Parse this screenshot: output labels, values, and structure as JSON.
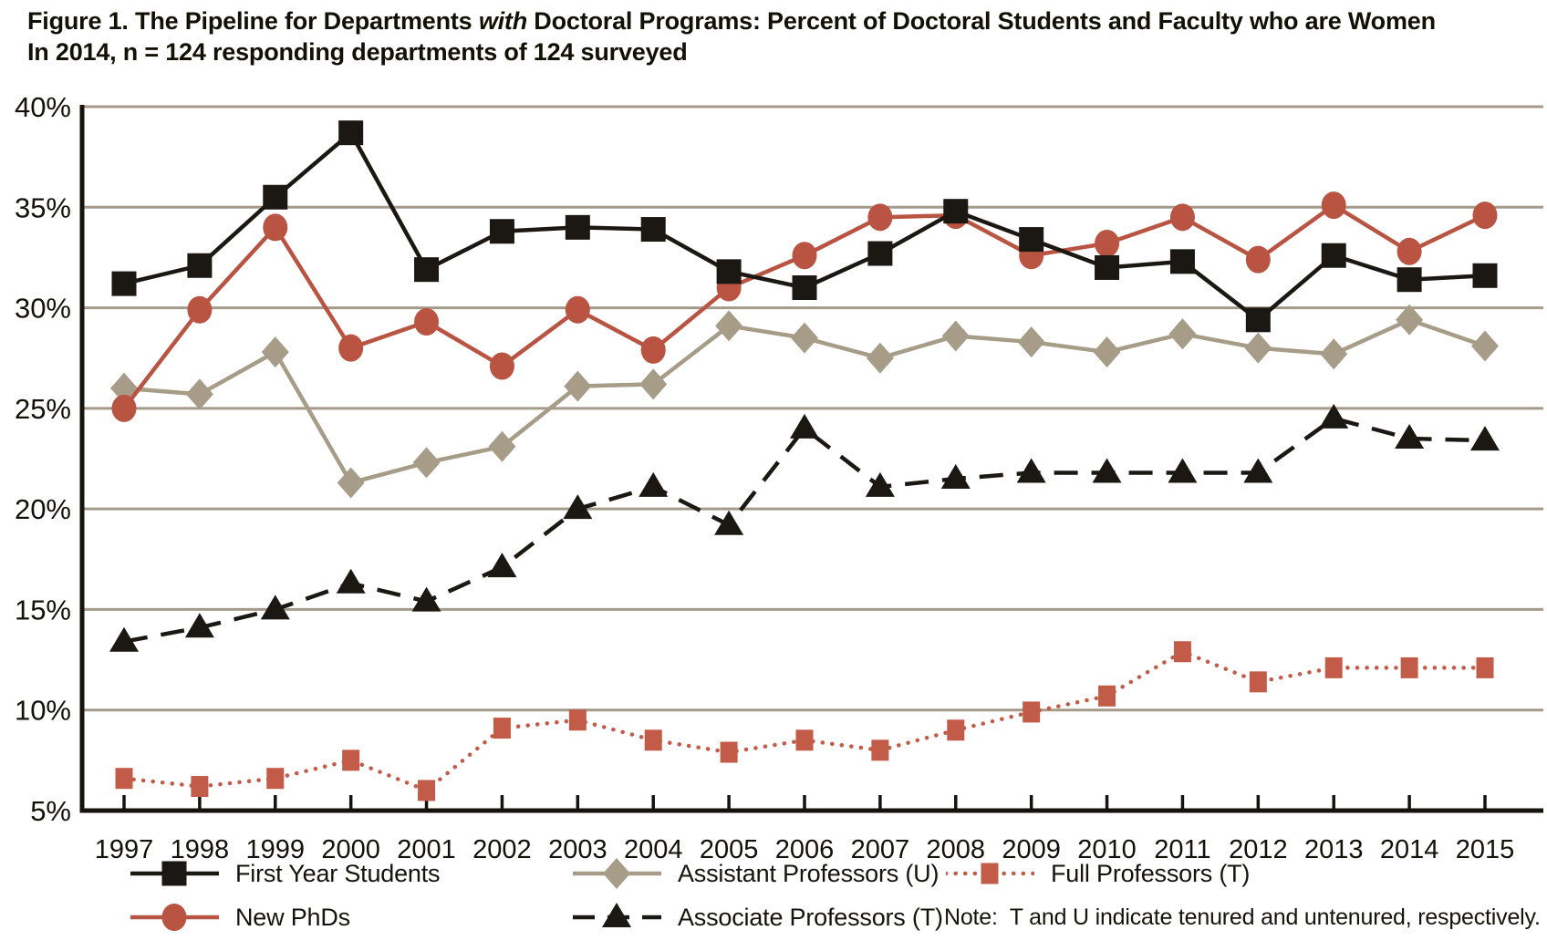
{
  "figure_title": {
    "prefix": "Figure 1. The Pipeline for Departments ",
    "emphasis": "with",
    "suffix": " Doctoral Programs: Percent of Doctoral Students and Faculty who are Women"
  },
  "subtitle": "In 2014, n = 124 responding departments of 124 surveyed",
  "note": "Note:  T and U indicate tenured and untenured, respectively.",
  "colors": {
    "black": "#1b1713",
    "red": "#b95342",
    "red_dotted": "#c25b48",
    "gray": "#a69c87",
    "grid": "#a39a8a",
    "axis": "#16130e"
  },
  "chart_data": {
    "type": "line",
    "x": [
      1997,
      1998,
      1999,
      2000,
      2001,
      2002,
      2003,
      2004,
      2005,
      2006,
      2007,
      2008,
      2009,
      2010,
      2011,
      2012,
      2013,
      2014,
      2015
    ],
    "ylim": [
      5,
      40
    ],
    "yticks": [
      5,
      10,
      15,
      20,
      25,
      30,
      35,
      40
    ],
    "y_tick_labels": [
      "5%",
      "10%",
      "15%",
      "20%",
      "25%",
      "30%",
      "35%",
      "40%"
    ],
    "grid": true,
    "legend_position": "bottom",
    "series": [
      {
        "name": "First Year Students",
        "marker": "square",
        "line": "solid",
        "color": "#1b1713",
        "values": [
          31.2,
          32.1,
          35.5,
          38.7,
          31.9,
          33.8,
          34.0,
          33.9,
          31.8,
          31.0,
          32.7,
          34.8,
          33.4,
          32.0,
          32.3,
          29.4,
          32.6,
          31.4,
          31.6
        ]
      },
      {
        "name": "New PhDs",
        "marker": "circle",
        "line": "solid",
        "color": "#b95342",
        "values": [
          25.0,
          29.9,
          34.0,
          28.0,
          29.3,
          27.1,
          29.9,
          27.9,
          31.0,
          32.6,
          34.5,
          34.6,
          32.6,
          33.2,
          34.5,
          32.4,
          35.1,
          32.8,
          34.6
        ]
      },
      {
        "name": "Assistant Professors (U)",
        "marker": "diamond",
        "line": "solid",
        "color": "#a69c87",
        "values": [
          26.0,
          25.7,
          27.8,
          21.3,
          22.3,
          23.1,
          26.1,
          26.2,
          29.1,
          28.5,
          27.5,
          28.6,
          28.3,
          27.8,
          28.7,
          28.0,
          27.7,
          29.4,
          28.1
        ]
      },
      {
        "name": "Associate Professors (T)",
        "marker": "triangle",
        "line": "dashed",
        "color": "#1b1713",
        "values": [
          13.4,
          14.1,
          15.0,
          16.3,
          15.4,
          17.1,
          20.0,
          21.1,
          19.2,
          24.0,
          21.1,
          21.5,
          21.8,
          21.8,
          21.8,
          21.8,
          24.5,
          23.5,
          23.4
        ]
      },
      {
        "name": "Full Professors (T)",
        "marker": "square-small",
        "line": "dotted",
        "color": "#c25b48",
        "values": [
          6.6,
          6.2,
          6.6,
          7.5,
          6.0,
          9.1,
          9.5,
          8.5,
          7.9,
          8.5,
          8.0,
          9.0,
          9.9,
          10.7,
          12.9,
          11.4,
          12.1,
          12.1,
          12.1
        ]
      }
    ]
  }
}
